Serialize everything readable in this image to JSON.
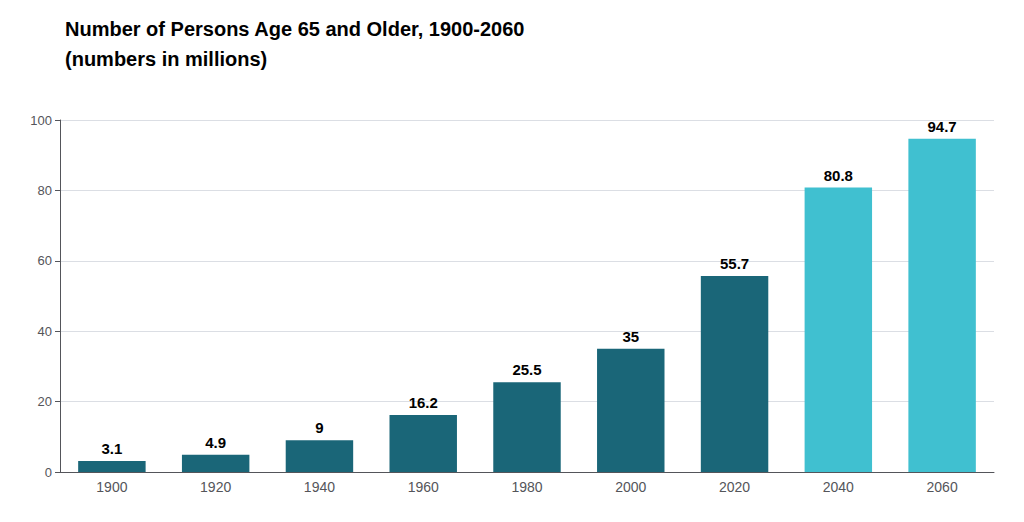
{
  "chart_data": {
    "type": "bar",
    "title": "Number of Persons Age 65 and Older, 1900-2060",
    "subtitle": "(numbers in millions)",
    "categories": [
      "1900",
      "1920",
      "1940",
      "1960",
      "1980",
      "2000",
      "2020",
      "2040",
      "2060"
    ],
    "values": [
      3.1,
      4.9,
      9,
      16.2,
      25.5,
      35,
      55.7,
      80.8,
      94.7
    ],
    "colors": [
      "#1a6678",
      "#1a6678",
      "#1a6678",
      "#1a6678",
      "#1a6678",
      "#1a6678",
      "#1a6678",
      "#40c0d0",
      "#40c0d0"
    ],
    "ylim": [
      0,
      100
    ],
    "yticks": [
      0,
      20,
      40,
      60,
      80,
      100
    ],
    "grid": true,
    "data_labels": true
  }
}
